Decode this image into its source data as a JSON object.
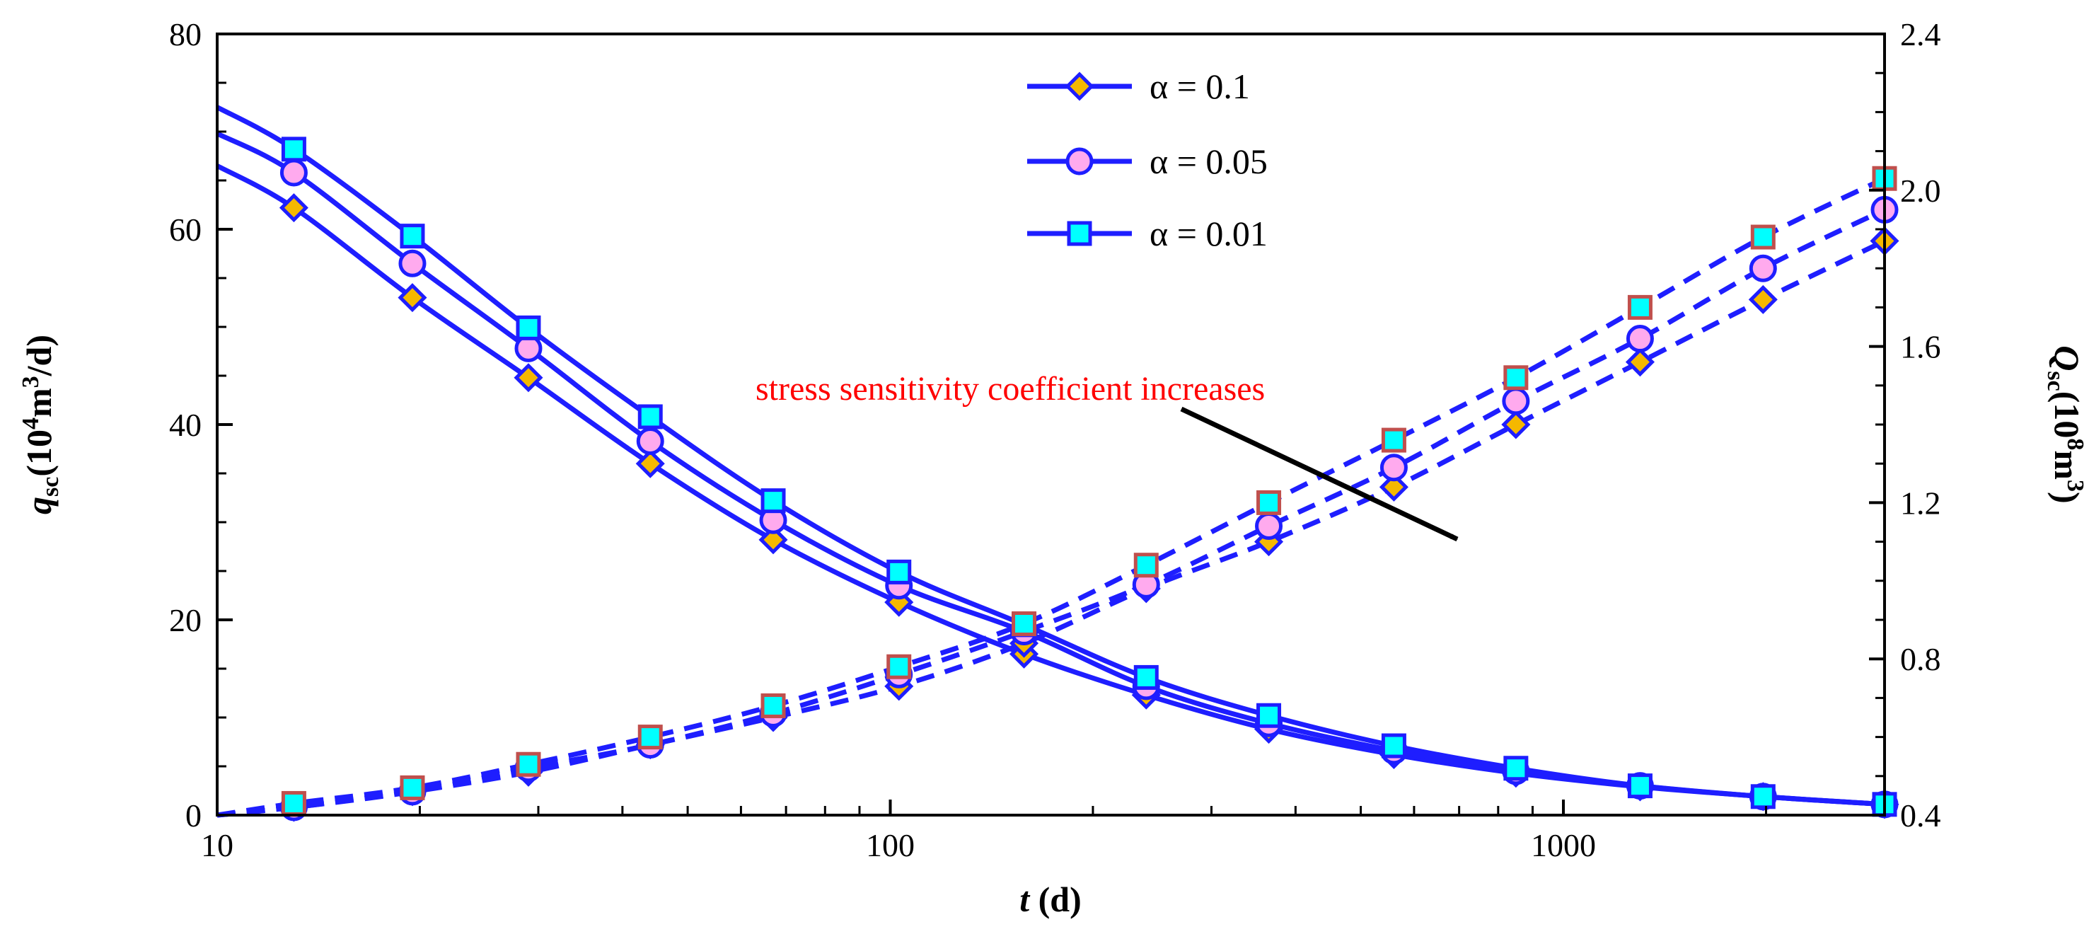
{
  "chart_data": {
    "type": "line",
    "x_scale": "log",
    "xlim": [
      10,
      3000
    ],
    "ylim_left": [
      0,
      80
    ],
    "ylim_right": [
      0.4,
      2.4
    ],
    "x_ticks": [
      "10",
      "100",
      "1000"
    ],
    "x_tick_values": [
      10,
      100,
      1000
    ],
    "y_left_ticks": [
      "0",
      "20",
      "40",
      "60",
      "80"
    ],
    "y_left_tick_values": [
      0,
      20,
      40,
      60,
      80
    ],
    "y_right_ticks": [
      "0.4",
      "0.8",
      "1.2",
      "1.6",
      "2.0",
      "2.4"
    ],
    "y_right_tick_values": [
      0.4,
      0.8,
      1.2,
      1.6,
      2.0,
      2.4
    ],
    "xlabel": {
      "main": "t",
      "unit": " (d)"
    },
    "ylabel_left": {
      "main": "q",
      "sub": "sc",
      "unit_pre": "(10",
      "sup1": "4",
      "unit_mid": "m",
      "sup2": "3",
      "unit_post": "/d)"
    },
    "ylabel_right": {
      "main": "Q",
      "sub": "sc",
      "unit_pre": "(10",
      "sup1": "8",
      "unit_mid": "m",
      "sup2": "3",
      "unit_post": ")"
    },
    "annotation": "stress sensitivity coefficient increases",
    "x": [
      10,
      13,
      19.5,
      29,
      44,
      67,
      103,
      158,
      240,
      365,
      560,
      850,
      1300,
      1980,
      3000
    ],
    "series": [
      {
        "name": "α = 0.1",
        "marker": "diamond",
        "marker_fill": "#f5b800",
        "marker_edge": "#1e1eff",
        "q_rate": [
          66.5,
          62.2,
          53.0,
          44.8,
          36.0,
          28.2,
          21.8,
          16.5,
          12.3,
          8.8,
          6.2,
          4.3,
          2.9,
          1.9,
          1.1
        ],
        "Q_cum": [
          0.4,
          0.42,
          0.46,
          0.51,
          0.58,
          0.65,
          0.73,
          0.84,
          0.98,
          1.1,
          1.24,
          1.4,
          1.56,
          1.72,
          1.87
        ]
      },
      {
        "name": "α = 0.05",
        "marker": "circle",
        "marker_fill": "#ffaaee",
        "marker_edge": "#1e1eff",
        "q_rate": [
          69.8,
          65.8,
          56.5,
          47.8,
          38.3,
          30.2,
          23.5,
          18.8,
          13.2,
          9.4,
          6.6,
          4.5,
          3.0,
          1.9,
          1.1
        ],
        "Q_cum": [
          0.4,
          0.42,
          0.46,
          0.52,
          0.58,
          0.66,
          0.76,
          0.87,
          0.99,
          1.14,
          1.29,
          1.46,
          1.62,
          1.8,
          1.95
        ]
      },
      {
        "name": "α = 0.01",
        "marker": "square",
        "marker_fill": "#00ffff",
        "marker_edge": "#1e1eff",
        "q_rate": [
          72.5,
          68.2,
          59.3,
          49.9,
          40.8,
          32.2,
          24.9,
          19.5,
          14.1,
          10.2,
          7.1,
          4.8,
          3.0,
          1.9,
          1.1
        ],
        "Q_cum": [
          0.4,
          0.43,
          0.47,
          0.53,
          0.6,
          0.68,
          0.78,
          0.89,
          1.04,
          1.2,
          1.36,
          1.52,
          1.7,
          1.88,
          2.03
        ]
      }
    ]
  }
}
